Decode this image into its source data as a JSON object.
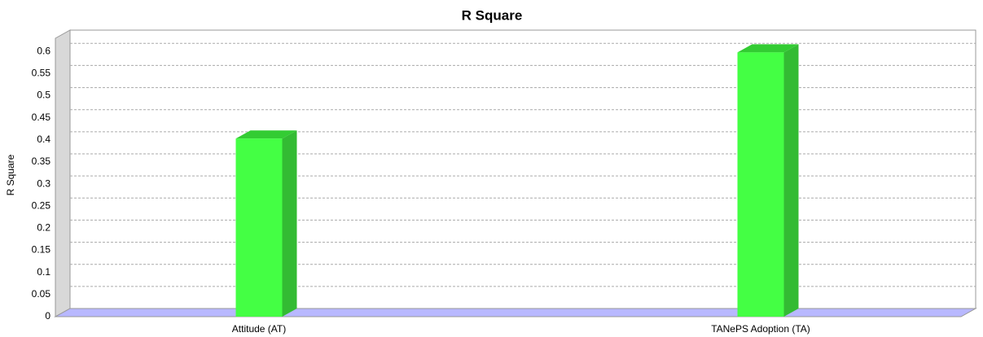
{
  "chart_data": {
    "type": "bar",
    "title": "R Square",
    "y_label": "R Square",
    "categories": [
      "Attitude (AT)",
      "TANePS Adoption (TA)"
    ],
    "values": [
      0.403,
      0.598
    ],
    "color": "#44ff44",
    "ylim": [
      0,
      0.63
    ],
    "yticks": [
      0,
      0.05,
      0.1,
      0.15,
      0.2,
      0.25,
      0.3,
      0.35,
      0.4,
      0.45,
      0.5,
      0.55,
      0.6
    ],
    "grid": true
  }
}
